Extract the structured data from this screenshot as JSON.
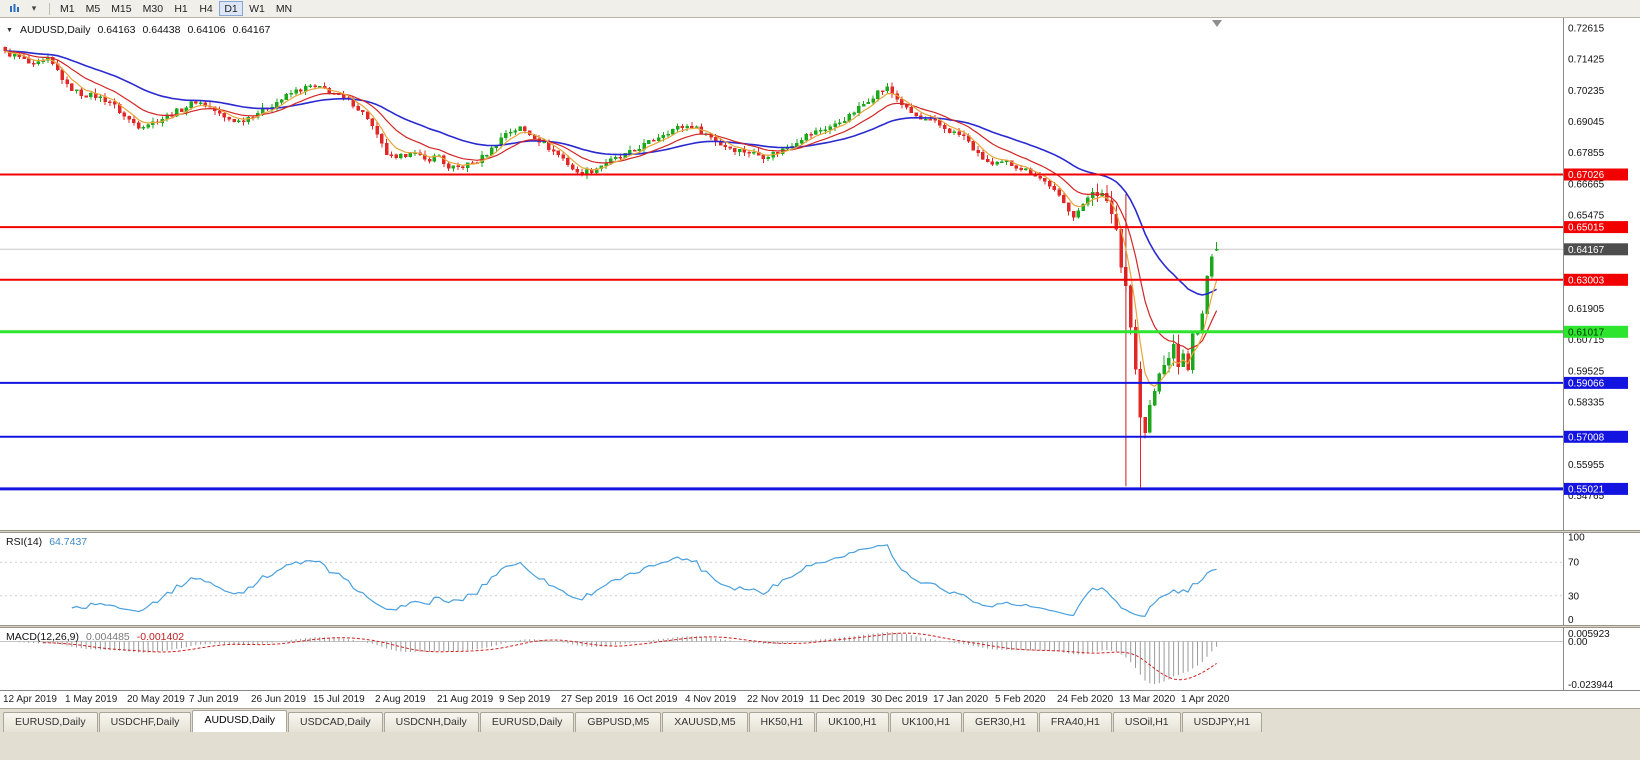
{
  "toolbar": {
    "timeframes": [
      "M1",
      "M5",
      "M15",
      "M30",
      "H1",
      "H4",
      "D1",
      "W1",
      "MN"
    ],
    "active_timeframe": "D1",
    "caret_glyph": "▾"
  },
  "chart": {
    "title": "AUDUSD,Daily",
    "marker_glyph": "▼",
    "ohlc": {
      "open": "0.64163",
      "high": "0.64438",
      "low": "0.64106",
      "close": "0.64167"
    },
    "candle_up_color": "#1ca81c",
    "candle_down_color": "#e02828",
    "price_axis": {
      "ticks": [
        {
          "label": "0.72615",
          "price": 0.72615
        },
        {
          "label": "0.71425",
          "price": 0.71425
        },
        {
          "label": "0.70235",
          "price": 0.70235
        },
        {
          "label": "0.69045",
          "price": 0.69045
        },
        {
          "label": "0.67855",
          "price": 0.67855
        },
        {
          "label": "0.66665",
          "price": 0.66665
        },
        {
          "label": "0.65475",
          "price": 0.65475
        },
        {
          "label": "0.61905",
          "price": 0.61905
        },
        {
          "label": "0.60715",
          "price": 0.60715
        },
        {
          "label": "0.59525",
          "price": 0.59525
        },
        {
          "label": "0.58335",
          "price": 0.58335
        },
        {
          "label": "0.55955",
          "price": 0.55955
        },
        {
          "label": "0.54765",
          "price": 0.54765
        }
      ]
    },
    "levels": [
      {
        "label": "0.67026",
        "price": 0.67026,
        "color": "#f20000",
        "width": 2
      },
      {
        "label": "0.65015",
        "price": 0.65015,
        "color": "#f20000",
        "width": 2
      },
      {
        "label": "0.63003",
        "price": 0.63003,
        "color": "#f20000",
        "width": 2
      },
      {
        "label": "0.61017",
        "price": 0.61017,
        "color": "#2ee52e",
        "width": 3,
        "text_color": "#003300"
      },
      {
        "label": "0.59066",
        "price": 0.59066,
        "color": "#1414e0",
        "width": 2
      },
      {
        "label": "0.57008",
        "price": 0.57008,
        "color": "#1414e0",
        "width": 2
      },
      {
        "label": "0.55021",
        "price": 0.55021,
        "color": "#1414e0",
        "width": 3
      }
    ],
    "current_price": {
      "label": "0.64167",
      "price": 0.64167,
      "line_color": "#c9c9c9",
      "badge_bg": "#4d4d4d",
      "badge_text": "#ffffff"
    }
  },
  "indicators": {
    "rsi": {
      "name": "RSI(14)",
      "value": "64.7437",
      "line_color": "#4aa0dd",
      "levels": [
        {
          "label": "100",
          "value": 100
        },
        {
          "label": "70",
          "value": 70
        },
        {
          "label": "30",
          "value": 30
        },
        {
          "label": "0",
          "value": 0
        }
      ]
    },
    "macd": {
      "name": "MACD(12,26,9)",
      "main_value": "0.004485",
      "signal_value": "-0.001402",
      "axis_max_label": "0.005923",
      "axis_zero_label": "0.00",
      "axis_min_label": "-0.023944",
      "histogram_color": "#9a9a9a",
      "signal_color": "#d02020"
    }
  },
  "date_axis": [
    "12 Apr 2019",
    "1 May 2019",
    "20 May 2019",
    "7 Jun 2019",
    "26 Jun 2019",
    "15 Jul 2019",
    "2 Aug 2019",
    "21 Aug 2019",
    "9 Sep 2019",
    "27 Sep 2019",
    "16 Oct 2019",
    "4 Nov 2019",
    "22 Nov 2019",
    "11 Dec 2019",
    "30 Dec 2019",
    "17 Jan 2020",
    "5 Feb 2020",
    "24 Feb 2020",
    "13 Mar 2020",
    "1 Apr 2020"
  ],
  "tabs": {
    "active_index": 2,
    "items": [
      "EURUSD,Daily",
      "USDCHF,Daily",
      "AUDUSD,Daily",
      "USDCAD,Daily",
      "USDCNH,Daily",
      "EURUSD,Daily",
      "GBPUSD,M5",
      "XAUUSD,M5",
      "HK50,H1",
      "UK100,H1",
      "UK100,H1",
      "GER30,H1",
      "FRA40,H1",
      "USOil,H1",
      "USDJPY,H1"
    ]
  },
  "chart_data": {
    "type": "candlestick",
    "symbol": "AUDUSD",
    "timeframe": "Daily",
    "visible_bars": 255,
    "last_candle": {
      "open": 0.64163,
      "high": 0.64438,
      "low": 0.64106,
      "close": 0.64167
    },
    "crash_low": {
      "index": 238,
      "price": 0.5503
    },
    "spike_line": {
      "index": 235,
      "from": 0.6628,
      "to": 0.5512
    },
    "moving_averages": [
      {
        "period": 34,
        "color": "#2a2ad0",
        "width": 1.6
      },
      {
        "period": 13,
        "color": "#d22626",
        "width": 1.2
      },
      {
        "period": 5,
        "color": "#e8a43a",
        "width": 1.2
      }
    ],
    "price_anchors": [
      [
        0,
        0.7168
      ],
      [
        3,
        0.715
      ],
      [
        6,
        0.7115
      ],
      [
        9,
        0.7142
      ],
      [
        11,
        0.71
      ],
      [
        13,
        0.704
      ],
      [
        16,
        0.701
      ],
      [
        19,
        0.7002
      ],
      [
        22,
        0.6982
      ],
      [
        25,
        0.6925
      ],
      [
        28,
        0.6888
      ],
      [
        31,
        0.6902
      ],
      [
        34,
        0.6925
      ],
      [
        37,
        0.6952
      ],
      [
        40,
        0.6982
      ],
      [
        43,
        0.696
      ],
      [
        46,
        0.6918
      ],
      [
        49,
        0.6905
      ],
      [
        52,
        0.693
      ],
      [
        55,
        0.6958
      ],
      [
        58,
        0.699
      ],
      [
        61,
        0.7022
      ],
      [
        64,
        0.7038
      ],
      [
        67,
        0.7028
      ],
      [
        70,
        0.7002
      ],
      [
        73,
        0.6972
      ],
      [
        76,
        0.692
      ],
      [
        78,
        0.6848
      ],
      [
        80,
        0.6782
      ],
      [
        82,
        0.6758
      ],
      [
        85,
        0.6792
      ],
      [
        88,
        0.6758
      ],
      [
        91,
        0.6775
      ],
      [
        93,
        0.6722
      ],
      [
        96,
        0.6735
      ],
      [
        99,
        0.6752
      ],
      [
        102,
        0.68
      ],
      [
        105,
        0.6862
      ],
      [
        108,
        0.688
      ],
      [
        111,
        0.6848
      ],
      [
        114,
        0.6805
      ],
      [
        117,
        0.6765
      ],
      [
        120,
        0.6705
      ],
      [
        123,
        0.6718
      ],
      [
        126,
        0.6748
      ],
      [
        129,
        0.6768
      ],
      [
        132,
        0.6795
      ],
      [
        135,
        0.6825
      ],
      [
        138,
        0.6858
      ],
      [
        141,
        0.6882
      ],
      [
        144,
        0.6888
      ],
      [
        147,
        0.6858
      ],
      [
        150,
        0.6818
      ],
      [
        153,
        0.6798
      ],
      [
        156,
        0.6788
      ],
      [
        159,
        0.6772
      ],
      [
        162,
        0.6788
      ],
      [
        165,
        0.6818
      ],
      [
        168,
        0.6852
      ],
      [
        171,
        0.6872
      ],
      [
        174,
        0.6892
      ],
      [
        177,
        0.6925
      ],
      [
        180,
        0.6972
      ],
      [
        183,
        0.7018
      ],
      [
        185,
        0.7032
      ],
      [
        187,
        0.6992
      ],
      [
        189,
        0.6952
      ],
      [
        192,
        0.6912
      ],
      [
        195,
        0.6902
      ],
      [
        198,
        0.6868
      ],
      [
        201,
        0.6848
      ],
      [
        204,
        0.6778
      ],
      [
        207,
        0.6738
      ],
      [
        210,
        0.6748
      ],
      [
        213,
        0.6728
      ],
      [
        216,
        0.6702
      ],
      [
        219,
        0.6662
      ],
      [
        222,
        0.6592
      ],
      [
        224,
        0.6548
      ],
      [
        226,
        0.6582
      ],
      [
        228,
        0.6648
      ],
      [
        230,
        0.6622
      ],
      [
        232,
        0.6558
      ],
      [
        233,
        0.6495
      ],
      [
        234,
        0.6348
      ],
      [
        235,
        0.6295
      ],
      [
        236,
        0.6122
      ],
      [
        237,
        0.5965
      ],
      [
        238,
        0.5772
      ],
      [
        239,
        0.5718
      ],
      [
        240,
        0.5812
      ],
      [
        241,
        0.5872
      ],
      [
        242,
        0.5938
      ],
      [
        243,
        0.5972
      ],
      [
        244,
        0.6012
      ],
      [
        245,
        0.604
      ],
      [
        246,
        0.5978
      ],
      [
        247,
        0.6012
      ],
      [
        248,
        0.5965
      ],
      [
        249,
        0.6088
      ],
      [
        250,
        0.6092
      ],
      [
        251,
        0.6172
      ],
      [
        252,
        0.6305
      ],
      [
        253,
        0.6398
      ],
      [
        254,
        0.64167
      ]
    ]
  }
}
